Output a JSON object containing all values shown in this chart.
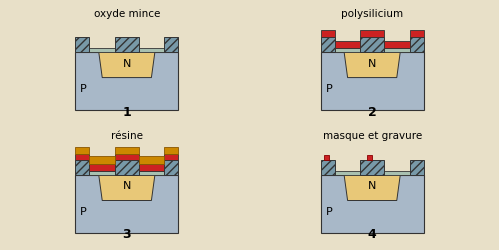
{
  "bg_color": "#e8e0c8",
  "colors": {
    "substrate_p": "#a8b8c8",
    "n_region": "#e8c878",
    "oxide_hatch": "#7899a8",
    "thin_oxide": "#a8c0b0",
    "polysilicon": "#cc2222",
    "resin": "#cc8800",
    "outline": "#333333"
  },
  "labels": {
    "diagram1": "oxyde mince",
    "diagram2": "polysilicium",
    "diagram3": "résine",
    "diagram4": "masque et gravure",
    "num1": "1",
    "num2": "2",
    "num3": "3",
    "num4": "4",
    "P": "P",
    "N": "N"
  },
  "font_sizes": {
    "title": 7.5,
    "number": 9,
    "label": 8
  }
}
